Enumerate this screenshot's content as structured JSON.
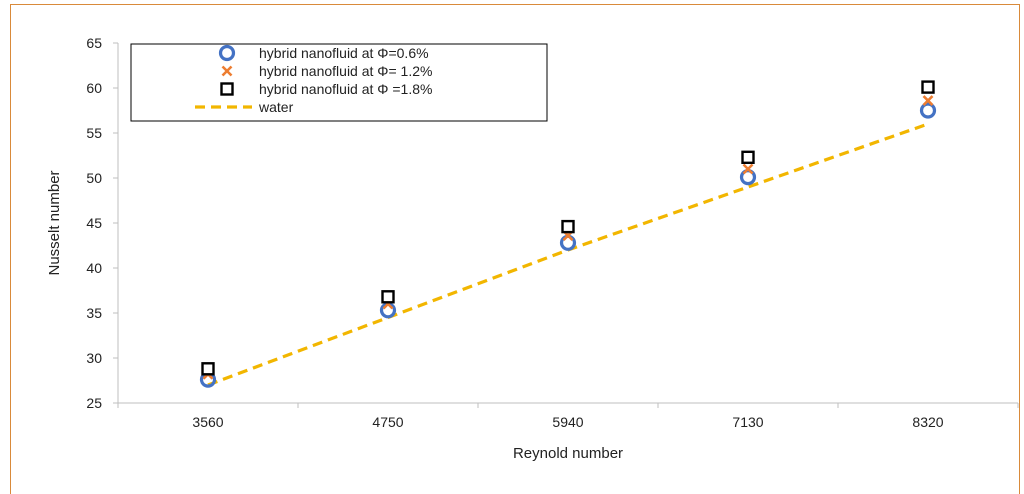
{
  "chart_data": {
    "type": "scatter",
    "xlabel": "Reynold number",
    "ylabel": "Nusselt number",
    "categories": [
      "3560",
      "4750",
      "5940",
      "7130",
      "8320"
    ],
    "ylim": [
      25,
      65
    ],
    "yticks": [
      25,
      30,
      35,
      40,
      45,
      50,
      55,
      60,
      65
    ],
    "grid": false,
    "legend_position": "top-left",
    "series": [
      {
        "name": "hybrid nanofluid at Φ=0.6%",
        "marker": "circle",
        "color": "#4472c4",
        "values": [
          27.6,
          35.3,
          42.8,
          50.1,
          57.5
        ]
      },
      {
        "name": "hybrid nanofluid at Φ= 1.2%",
        "marker": "x",
        "color": "#ed7d31",
        "values": [
          28.2,
          36.0,
          43.6,
          51.0,
          58.6
        ]
      },
      {
        "name": "hybrid nanofluid at Φ =1.8%",
        "marker": "square",
        "color": "#000000",
        "values": [
          28.8,
          36.8,
          44.6,
          52.3,
          60.1
        ]
      },
      {
        "name": "water",
        "marker": "dashed-line",
        "color": "#f2b600",
        "values": [
          27.0,
          34.5,
          42.0,
          49.0,
          56.0
        ]
      }
    ]
  }
}
